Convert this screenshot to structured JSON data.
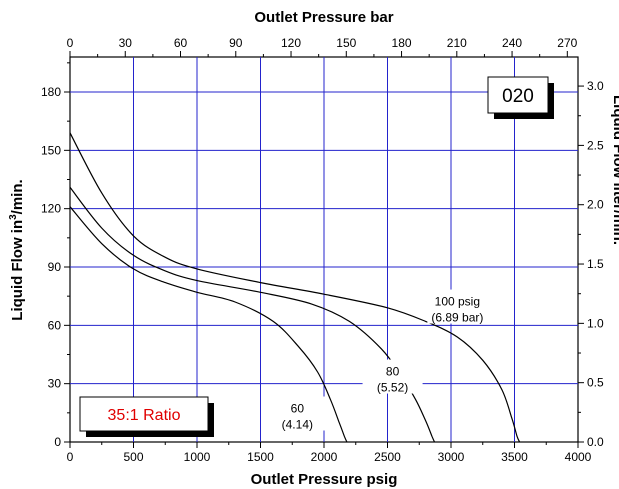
{
  "chart_data": {
    "type": "line",
    "top_axis": {
      "label": "Outlet Pressure bar",
      "ticks": [
        "0",
        "30",
        "60",
        "90",
        "120",
        "150",
        "180",
        "210",
        "240",
        "270"
      ],
      "range": [
        0,
        275.8
      ]
    },
    "bottom_axis": {
      "label": "Outlet Pressure psig",
      "ticks": [
        "0",
        "500",
        "1000",
        "1500",
        "2000",
        "2500",
        "3000",
        "3500",
        "4000"
      ],
      "range": [
        0,
        4000
      ]
    },
    "left_axis": {
      "label": "Liquid Flow in³/min.",
      "label_main": "Liquid Flow in",
      "label_sup": "3",
      "label_end": "/min.",
      "ticks": [
        "0",
        "30",
        "60",
        "90",
        "120",
        "150",
        "180"
      ],
      "range": [
        0,
        198
      ]
    },
    "right_axis": {
      "label": "Liquid Flow liter/min.",
      "ticks": [
        "0.0",
        "0.5",
        "1.0",
        "1.5",
        "2.0",
        "2.5",
        "3.0"
      ],
      "range": [
        0,
        3.245
      ]
    },
    "grid": true,
    "badge": "020",
    "ratio_label": "35:1 Ratio",
    "series": [
      {
        "name": "100 psig (6.89 bar)",
        "label_line1": "100 psig",
        "label_line2": "(6.89 bar)",
        "x": [
          0,
          250,
          500,
          750,
          1000,
          1500,
          2000,
          2500,
          2800,
          3050,
          3250,
          3400,
          3480,
          3520,
          3540
        ],
        "y": [
          159,
          128,
          106,
          95,
          89,
          82,
          76,
          69,
          62,
          54,
          42,
          27,
          12,
          3,
          0
        ]
      },
      {
        "name": "80 (5.52)",
        "label_line1": "80",
        "label_line2": "(5.52)",
        "x": [
          0,
          250,
          500,
          750,
          1000,
          1500,
          1900,
          2200,
          2450,
          2600,
          2720,
          2800,
          2850,
          2870
        ],
        "y": [
          131,
          110,
          96,
          88,
          83,
          77,
          71,
          62,
          48,
          35,
          22,
          11,
          3,
          0
        ]
      },
      {
        "name": "60 (4.14)",
        "label_line1": "60",
        "label_line2": "(4.14)",
        "x": [
          0,
          250,
          500,
          750,
          1000,
          1300,
          1600,
          1800,
          1950,
          2050,
          2120,
          2160,
          2180
        ],
        "y": [
          121,
          102,
          89,
          82,
          77,
          72,
          62,
          49,
          36,
          22,
          10,
          3,
          0
        ]
      }
    ]
  }
}
